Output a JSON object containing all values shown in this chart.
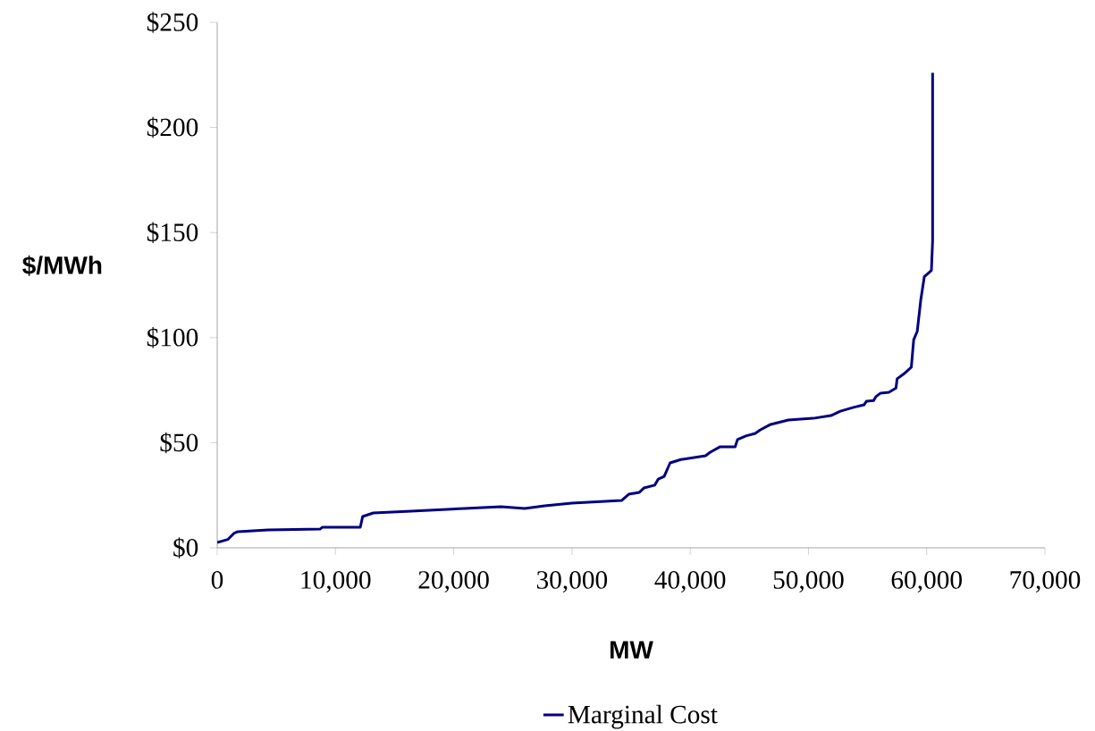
{
  "chart_data": {
    "type": "line",
    "xlabel": "MW",
    "ylabel": "$/MWh",
    "x": [
      0,
      900,
      1440,
      1740,
      4300,
      8700,
      8900,
      12100,
      12300,
      13200,
      16400,
      20900,
      24000,
      26000,
      27700,
      30000,
      34200,
      34800,
      35700,
      36100,
      37000,
      37300,
      37800,
      38300,
      39200,
      41300,
      41700,
      42500,
      43800,
      44000,
      44700,
      45500,
      45900,
      46800,
      48300,
      50400,
      51900,
      52700,
      53800,
      54700,
      54900,
      55500,
      55700,
      56100,
      56800,
      57400,
      57500,
      58100,
      58700,
      58900,
      59200,
      59500,
      59800,
      60400,
      60500,
      60500
    ],
    "series": [
      {
        "name": "Marginal Cost",
        "color": "#000080",
        "values": [
          2.5,
          4,
          7,
          7.7,
          8.5,
          8.9,
          9.8,
          9.8,
          14.9,
          16.6,
          17.4,
          18.7,
          19.6,
          18.7,
          20,
          21.3,
          22.5,
          25.5,
          26.4,
          28.5,
          29.8,
          32.7,
          34,
          40.4,
          42,
          43.8,
          45.5,
          48,
          48,
          51.5,
          53.2,
          54.4,
          56,
          58.7,
          60.8,
          61.6,
          62.9,
          65,
          66.8,
          68,
          69.7,
          70,
          71.9,
          73.6,
          74,
          76,
          80.4,
          82.9,
          85.9,
          99,
          103,
          118,
          129,
          132,
          146,
          226
        ]
      }
    ],
    "xlim": [
      0,
      70000
    ],
    "ylim": [
      0,
      250
    ],
    "xticks": [
      0,
      {
        "value": 10000,
        "label": "10,000"
      },
      {
        "value": 20000,
        "label": "20,000"
      },
      {
        "value": 30000,
        "label": "30,000"
      },
      {
        "value": 40000,
        "label": "40,000"
      },
      {
        "value": 50000,
        "label": "50,000"
      },
      {
        "value": 60000,
        "label": "60,000"
      },
      {
        "value": 70000,
        "label": "70,000"
      }
    ],
    "yticks": [
      {
        "value": 0,
        "label": "$0"
      },
      {
        "value": 50,
        "label": "$50"
      },
      {
        "value": 100,
        "label": "$100"
      },
      {
        "value": 150,
        "label": "$150"
      },
      {
        "value": 200,
        "label": "$200"
      },
      {
        "value": 250,
        "label": "$250"
      }
    ],
    "grid": false,
    "legend": "bottom"
  }
}
